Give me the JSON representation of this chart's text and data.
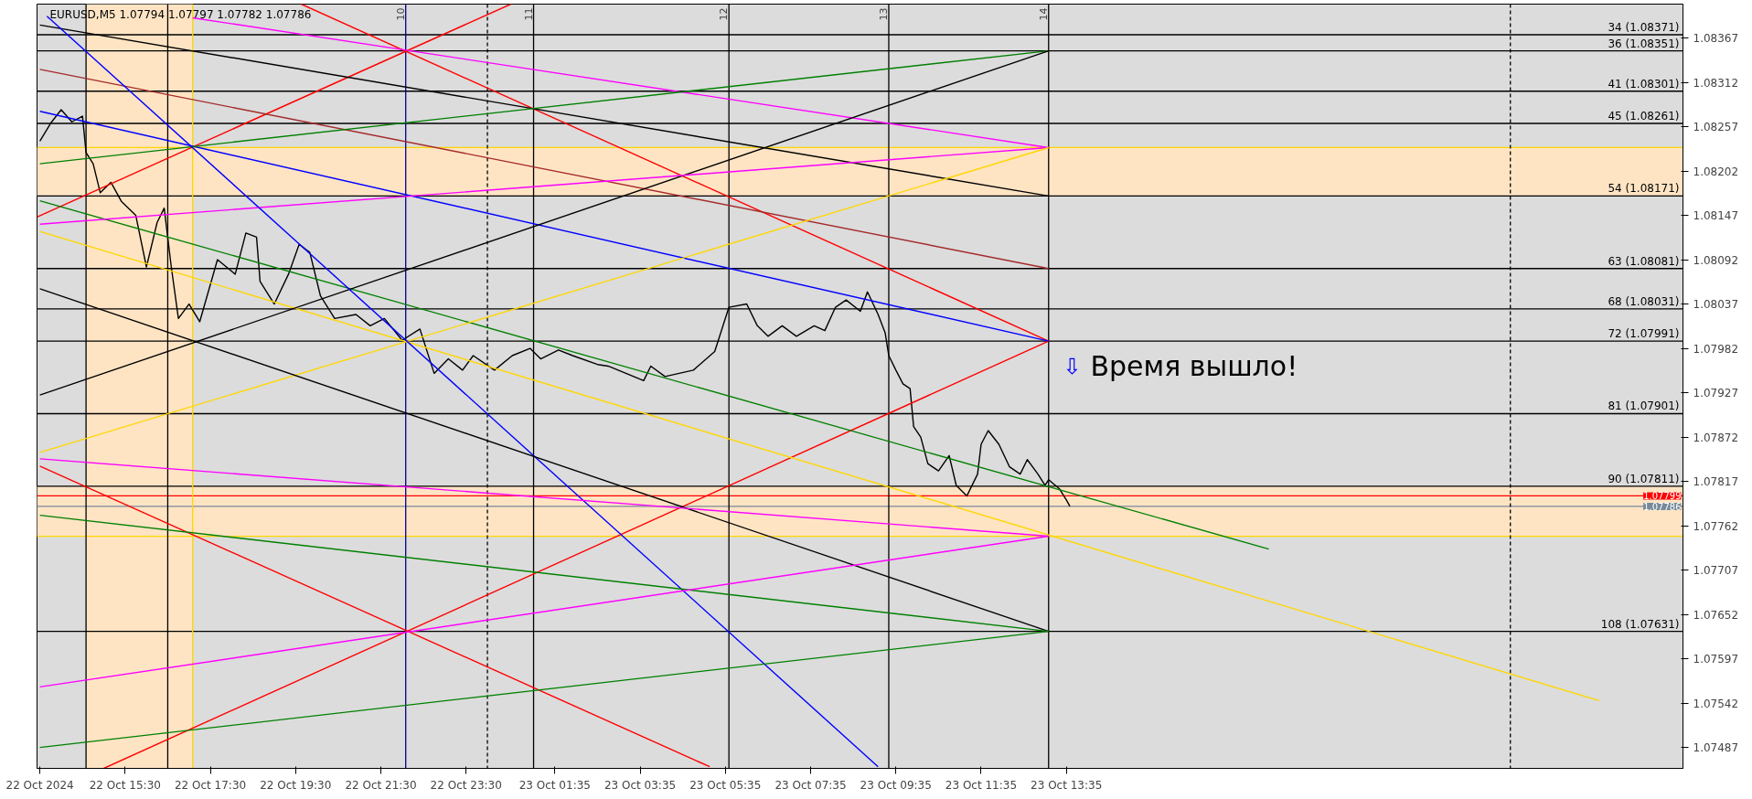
{
  "chart_data": {
    "type": "line",
    "title": "EURUSD,M5  1.07794 1.07797 1.07782 1.07786",
    "annotations": [
      "⇩",
      "Время вышло!",
      {
        "text": "10",
        "x": "2024-10-22T22:05",
        "y": 1.08409
      },
      {
        "text": "11",
        "x": "2024-10-23T01:05",
        "y": 1.08409
      },
      {
        "text": "12",
        "x": "2024-10-23T05:40",
        "y": 1.08409
      },
      {
        "text": "13",
        "x": "2024-10-23T09:25",
        "y": 1.08409
      },
      {
        "text": "14",
        "x": "2024-10-23T13:10",
        "y": 1.08409
      }
    ],
    "xlim": [
      "2024-10-22T13:26",
      "2024-10-24T04:03"
    ],
    "ylim": [
      1.07461,
      1.08409
    ],
    "xticks": [
      {
        "value": "2024-10-22T13:30",
        "label": "22 Oct 2024"
      },
      {
        "value": "2024-10-22T15:30",
        "label": "22 Oct 15:30"
      },
      {
        "value": "2024-10-22T17:30",
        "label": "22 Oct 17:30"
      },
      {
        "value": "2024-10-22T19:30",
        "label": "22 Oct 19:30"
      },
      {
        "value": "2024-10-22T21:30",
        "label": "22 Oct 21:30"
      },
      {
        "value": "2024-10-22T23:30",
        "label": "22 Oct 23:30"
      },
      {
        "value": "2024-10-23T01:35",
        "label": "23 Oct 01:35"
      },
      {
        "value": "2024-10-23T03:35",
        "label": "23 Oct 03:35"
      },
      {
        "value": "2024-10-23T05:35",
        "label": "23 Oct 05:35"
      },
      {
        "value": "2024-10-23T07:35",
        "label": "23 Oct 07:35"
      },
      {
        "value": "2024-10-23T09:35",
        "label": "23 Oct 09:35"
      },
      {
        "value": "2024-10-23T11:35",
        "label": "23 Oct 11:35"
      },
      {
        "value": "2024-10-23T13:35",
        "label": "23 Oct 13:35"
      }
    ],
    "yticks": [
      1.08367,
      1.08312,
      1.08257,
      1.08202,
      1.08147,
      1.08092,
      1.08037,
      1.07982,
      1.07927,
      1.07872,
      1.07817,
      1.07762,
      1.07707,
      1.07652,
      1.07597,
      1.07542,
      1.07487
    ],
    "grid": false,
    "bands": [
      {
        "axis": "x",
        "from": "2024-10-22T14:35",
        "to": "2024-10-22T17:05",
        "color": "#ffe4c4"
      },
      {
        "axis": "y",
        "from": 1.08171,
        "to": 1.08231,
        "color": "#ffe4c4"
      },
      {
        "axis": "y",
        "from": 1.07749,
        "to": 1.07811,
        "color": "#ffe4c4"
      }
    ],
    "ref_lines": [
      {
        "axis": "y",
        "value": 1.08371,
        "label": "34 (1.08371)",
        "color": "#000000"
      },
      {
        "axis": "y",
        "value": 1.08351,
        "label": "36 (1.08351)",
        "color": "#000000"
      },
      {
        "axis": "y",
        "value": 1.08301,
        "label": "41 (1.08301)",
        "color": "#000000"
      },
      {
        "axis": "y",
        "value": 1.08261,
        "label": "45 (1.08261)",
        "color": "#000000"
      },
      {
        "axis": "y",
        "value": 1.08171,
        "label": "54 (1.08171)",
        "color": "#000000"
      },
      {
        "axis": "y",
        "value": 1.08081,
        "label": "63 (1.08081)",
        "color": "#000000"
      },
      {
        "axis": "y",
        "value": 1.08031,
        "label": "68 (1.08031)",
        "color": "#000000"
      },
      {
        "axis": "y",
        "value": 1.07991,
        "label": "72 (1.07991)",
        "color": "#000000"
      },
      {
        "axis": "y",
        "value": 1.07901,
        "label": "81 (1.07901)",
        "color": "#000000"
      },
      {
        "axis": "y",
        "value": 1.07811,
        "label": "90 (1.07811)",
        "color": "#000000"
      },
      {
        "axis": "y",
        "value": 1.07631,
        "label": "108 (1.07631)",
        "color": "#000000"
      },
      {
        "axis": "y",
        "value": 1.08231,
        "color": "#ffd700"
      },
      {
        "axis": "y",
        "value": 1.07749,
        "color": "#ffd700"
      },
      {
        "axis": "y",
        "value": 1.07799,
        "label": "1.07799",
        "color": "#ff0000"
      },
      {
        "axis": "y",
        "value": 1.07786,
        "label": "1.07786",
        "color": "#778899"
      },
      {
        "axis": "x",
        "value": "2024-10-22T14:35",
        "color": "#000000"
      },
      {
        "axis": "x",
        "value": "2024-10-22T16:30",
        "color": "#000000"
      },
      {
        "axis": "x",
        "value": "2024-10-22T17:05",
        "color": "#ffd700"
      },
      {
        "axis": "x",
        "value": "2024-10-22T22:05",
        "color": "#00008b"
      },
      {
        "axis": "x",
        "value": "2024-10-23T00:00",
        "color": "#000000",
        "line_style": "dashed"
      },
      {
        "axis": "x",
        "value": "2024-10-23T01:05",
        "color": "#000000"
      },
      {
        "axis": "x",
        "value": "2024-10-23T05:40",
        "color": "#000000"
      },
      {
        "axis": "x",
        "value": "2024-10-23T09:25",
        "color": "#000000"
      },
      {
        "axis": "x",
        "value": "2024-10-23T13:10",
        "color": "#000000"
      },
      {
        "axis": "x",
        "value": "2024-10-24T00:00",
        "color": "#000000",
        "line_style": "dashed"
      }
    ],
    "series": [
      {
        "color": "#000000",
        "x": [
          "2024-10-22T13:30",
          "2024-10-22T13:45",
          "2024-10-22T14:00",
          "2024-10-22T14:15",
          "2024-10-22T14:30",
          "2024-10-22T14:35",
          "2024-10-22T14:45",
          "2024-10-22T14:55",
          "2024-10-22T15:10",
          "2024-10-22T15:25",
          "2024-10-22T15:45",
          "2024-10-22T16:00",
          "2024-10-22T16:15",
          "2024-10-22T16:25",
          "2024-10-22T16:35",
          "2024-10-22T16:45",
          "2024-10-22T17:00",
          "2024-10-22T17:15",
          "2024-10-22T17:40",
          "2024-10-22T18:05",
          "2024-10-22T18:20",
          "2024-10-22T18:35",
          "2024-10-22T18:40",
          "2024-10-22T19:00",
          "2024-10-22T19:20",
          "2024-10-22T19:35",
          "2024-10-22T19:50",
          "2024-10-22T20:05",
          "2024-10-22T20:25",
          "2024-10-22T20:55",
          "2024-10-22T21:15",
          "2024-10-22T21:35",
          "2024-10-22T22:00",
          "2024-10-22T22:25",
          "2024-10-22T22:45",
          "2024-10-22T23:05",
          "2024-10-22T23:25",
          "2024-10-22T23:40",
          "2024-10-23T00:10",
          "2024-10-23T00:35",
          "2024-10-23T01:00",
          "2024-10-23T01:15",
          "2024-10-23T01:40",
          "2024-10-23T02:00",
          "2024-10-23T02:35",
          "2024-10-23T02:50",
          "2024-10-23T03:40",
          "2024-10-23T03:50",
          "2024-10-23T04:10",
          "2024-10-23T04:50",
          "2024-10-23T05:20",
          "2024-10-23T05:40",
          "2024-10-23T06:05",
          "2024-10-23T06:20",
          "2024-10-23T06:35",
          "2024-10-23T06:55",
          "2024-10-23T07:15",
          "2024-10-23T07:40",
          "2024-10-23T07:55",
          "2024-10-23T08:10",
          "2024-10-23T08:25",
          "2024-10-23T08:45",
          "2024-10-23T08:55",
          "2024-10-23T09:10",
          "2024-10-23T09:20",
          "2024-10-23T09:25",
          "2024-10-23T09:35",
          "2024-10-23T09:45",
          "2024-10-23T09:55",
          "2024-10-23T10:00",
          "2024-10-23T10:10",
          "2024-10-23T10:20",
          "2024-10-23T10:35",
          "2024-10-23T10:50",
          "2024-10-23T11:00",
          "2024-10-23T11:15",
          "2024-10-23T11:30",
          "2024-10-23T11:35",
          "2024-10-23T11:45",
          "2024-10-23T12:00",
          "2024-10-23T12:15",
          "2024-10-23T12:30",
          "2024-10-23T12:40",
          "2024-10-23T12:55",
          "2024-10-23T13:05",
          "2024-10-23T13:10",
          "2024-10-23T13:25",
          "2024-10-23T13:35",
          "2024-10-23T13:40"
        ],
        "values": [
          1.08239,
          1.08261,
          1.08278,
          1.08263,
          1.0827,
          1.08225,
          1.08211,
          1.08175,
          1.08188,
          1.08164,
          1.08147,
          1.08083,
          1.08138,
          1.08156,
          1.08083,
          1.08019,
          1.08037,
          1.08015,
          1.08092,
          1.08074,
          1.08125,
          1.0812,
          1.08065,
          1.08037,
          1.08074,
          1.08111,
          1.08101,
          1.08047,
          1.08019,
          1.08024,
          1.0801,
          1.08019,
          1.07992,
          1.08006,
          1.07951,
          1.07969,
          1.07955,
          1.07973,
          1.07955,
          1.07973,
          1.07982,
          1.07969,
          1.0798,
          1.07973,
          1.07962,
          1.0796,
          1.07942,
          1.0796,
          1.07947,
          1.07955,
          1.07978,
          1.08033,
          1.08037,
          1.0801,
          1.07997,
          1.0801,
          1.07997,
          1.0801,
          1.08004,
          1.08033,
          1.08042,
          1.08028,
          1.08052,
          1.08024,
          1.08001,
          1.07973,
          1.07955,
          1.07938,
          1.07932,
          1.07885,
          1.07872,
          1.07839,
          1.0783,
          1.07849,
          1.07812,
          1.07799,
          1.07826,
          1.07863,
          1.0788,
          1.07863,
          1.07835,
          1.07826,
          1.07844,
          1.07826,
          1.07812,
          1.07819,
          1.07808,
          1.07794,
          1.07786
        ]
      },
      {
        "color": "#ff0000",
        "x": [
          "2024-10-22T13:26",
          "2024-10-23T00:33"
        ],
        "values": [
          1.08145,
          1.08409
        ]
      },
      {
        "color": "#ff0000",
        "x": [
          "2024-10-22T19:38",
          "2024-10-23T13:10"
        ],
        "values": [
          1.08409,
          1.07991
        ]
      },
      {
        "color": "#ff0000",
        "x": [
          "2024-10-22T15:00",
          "2024-10-23T13:10"
        ],
        "values": [
          1.07461,
          1.07991
        ]
      },
      {
        "color": "#ff0000",
        "x": [
          "2024-10-22T13:30",
          "2024-10-23T05:13"
        ],
        "values": [
          1.07836,
          1.07463
        ]
      },
      {
        "color": "#008000",
        "x": [
          "2024-10-22T13:30",
          "2024-10-23T18:20"
        ],
        "values": [
          1.08165,
          1.07733
        ]
      },
      {
        "color": "#ffd700",
        "x": [
          "2024-10-22T13:30",
          "2024-10-24T02:05"
        ],
        "values": [
          1.08127,
          1.07545
        ]
      },
      {
        "color": "#000000",
        "x": [
          "2024-10-22T13:30",
          "2024-10-23T13:10"
        ],
        "values": [
          1.08383,
          1.08171
        ]
      },
      {
        "color": "#ff00ff",
        "x": [
          "2024-10-22T17:05",
          "2024-10-23T13:10"
        ],
        "values": [
          1.08392,
          1.08231
        ]
      },
      {
        "color": "#0000ff",
        "x": [
          "2024-10-22T13:30",
          "2024-10-23T13:10"
        ],
        "values": [
          1.08276,
          1.07991
        ]
      },
      {
        "color": "#a52a2a",
        "x": [
          "2024-10-22T13:30",
          "2024-10-23T13:10"
        ],
        "values": [
          1.08328,
          1.08081
        ]
      },
      {
        "color": "#008000",
        "x": [
          "2024-10-22T13:30",
          "2024-10-23T13:10"
        ],
        "values": [
          1.08211,
          1.08351
        ]
      },
      {
        "color": "#000000",
        "x": [
          "2024-10-22T13:30",
          "2024-10-23T13:10"
        ],
        "values": [
          1.07924,
          1.08351
        ]
      },
      {
        "color": "#ff00ff",
        "x": [
          "2024-10-22T13:30",
          "2024-10-23T13:10"
        ],
        "values": [
          1.08136,
          1.08231
        ]
      },
      {
        "color": "#ffd700",
        "x": [
          "2024-10-22T13:30",
          "2024-10-23T13:10"
        ],
        "values": [
          1.07853,
          1.08231
        ]
      },
      {
        "color": "#0000ff",
        "x": [
          "2024-10-22T13:40",
          "2024-10-23T09:10"
        ],
        "values": [
          1.08394,
          1.07463
        ]
      },
      {
        "color": "#000000",
        "x": [
          "2024-10-22T13:30",
          "2024-10-23T13:10"
        ],
        "values": [
          1.08056,
          1.07631
        ]
      },
      {
        "color": "#008000",
        "x": [
          "2024-10-22T13:30",
          "2024-10-23T13:10"
        ],
        "values": [
          1.07775,
          1.07631
        ]
      },
      {
        "color": "#ff00ff",
        "x": [
          "2024-10-22T13:30",
          "2024-10-23T13:10"
        ],
        "values": [
          1.07845,
          1.07749
        ]
      },
      {
        "color": "#ff00ff",
        "x": [
          "2024-10-22T13:30",
          "2024-10-23T13:10"
        ],
        "values": [
          1.07562,
          1.07749
        ]
      },
      {
        "color": "#008000",
        "x": [
          "2024-10-22T13:30",
          "2024-10-23T13:10"
        ],
        "values": [
          1.07487,
          1.07631
        ]
      }
    ]
  }
}
